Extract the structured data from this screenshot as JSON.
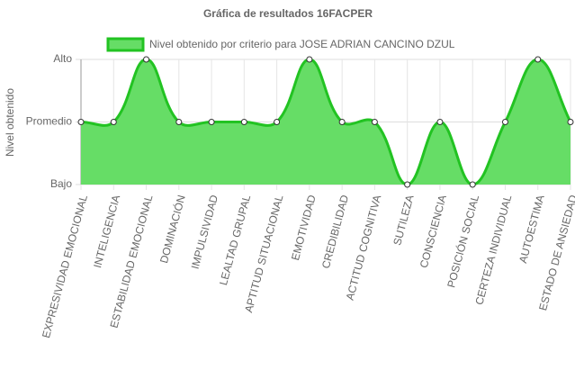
{
  "chart_data": {
    "type": "line",
    "title": "Gráfica de resultados 16FACPER",
    "y_label": "Nivel obtenido",
    "categories": [
      "EXPRESIVIDAD EMOCIONAL",
      "INTELIGENCIA",
      "ESTABILIDAD EMOCIONAL",
      "DOMINACIÓN",
      "IMPULSIVIDAD",
      "LEALTAD GRUPAL",
      "APTITUD SITUACIONAL",
      "EMOTIVIDAD",
      "CREDIBILIDAD",
      "ACTITUD COGNITIVA",
      "SUTILEZA",
      "CONSCIENCIA",
      "POSICIÓN SOCIAL",
      "CERTEZA INDIVIDUAL",
      "AUTOESTIMA",
      "ESTADO DE ANSIEDAD"
    ],
    "series": [
      {
        "name": "Nivel obtenido por criterio para JOSE ADRIAN CANCINO DZUL",
        "color": "#22c322",
        "fill": "#66dd66",
        "values": [
          2,
          2,
          3,
          2,
          2,
          2,
          2,
          3,
          2,
          2,
          1,
          2,
          1,
          2,
          3,
          2
        ]
      }
    ],
    "ylim": [
      1,
      3
    ],
    "yticks": [
      {
        "value": 1,
        "label": "Bajo"
      },
      {
        "value": 2,
        "label": "Promedio"
      },
      {
        "value": 3,
        "label": "Alto"
      }
    ],
    "grid": true,
    "legend": "top"
  }
}
